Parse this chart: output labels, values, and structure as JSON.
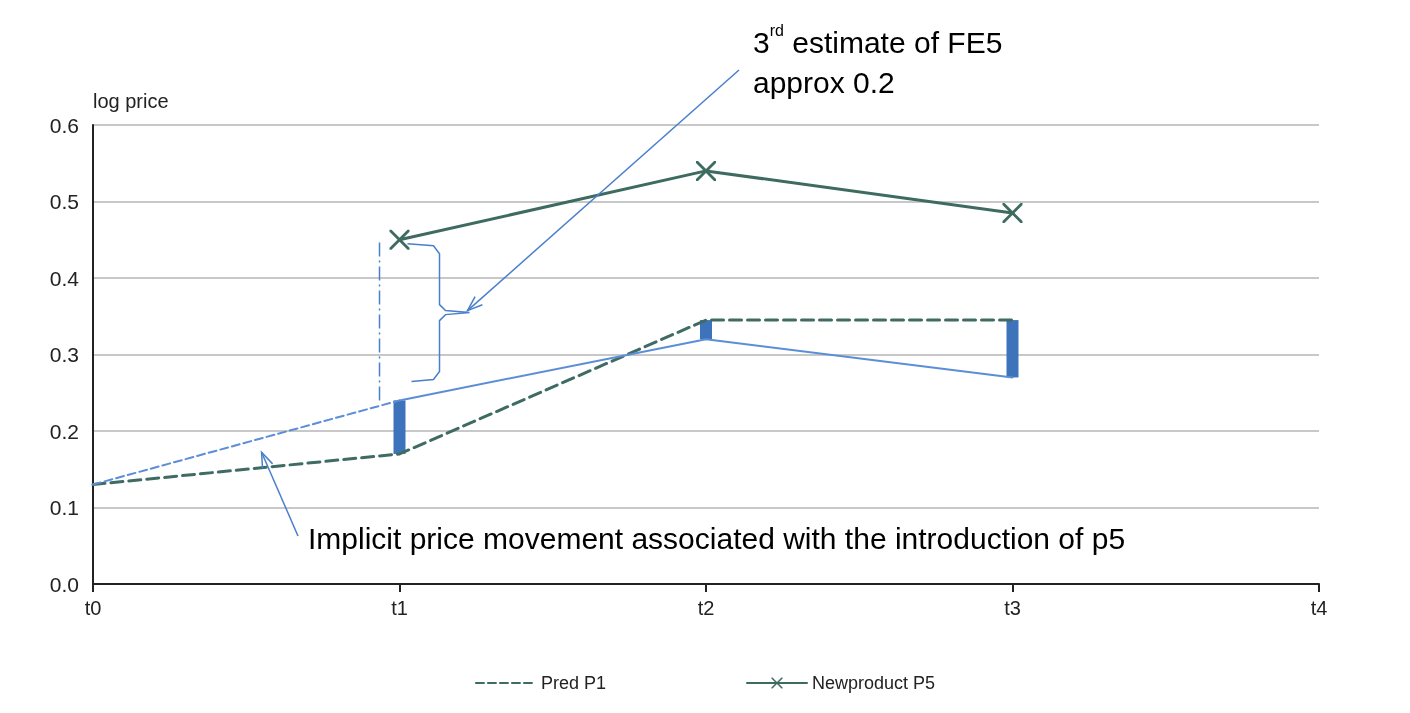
{
  "chart_data": {
    "type": "line",
    "ylabel": "log price",
    "categories": [
      "t0",
      "t1",
      "t2",
      "t3",
      "t4"
    ],
    "ylim": [
      0,
      0.6
    ],
    "yticks": [
      {
        "value": 0,
        "label": "0.0"
      },
      0.1,
      0.2,
      0.3,
      0.4,
      0.5,
      0.6
    ],
    "grid": "y",
    "legend": "bottom",
    "series": [
      {
        "name": "Pred P1",
        "color": "#3f6b63",
        "line_style": "dashed",
        "marker": "none",
        "values": [
          0.13,
          0.17,
          0.345,
          0.345,
          null
        ]
      },
      {
        "name": "Newproduct P5",
        "color": "#3e6b60",
        "line_style": "solid",
        "marker": "cross",
        "values": [
          null,
          0.45,
          0.54,
          0.485,
          null
        ]
      },
      {
        "color": "#5b8ed6",
        "line_style": "dashed",
        "marker": "none",
        "values": [
          0.13,
          0.24,
          null,
          null,
          null
        ]
      },
      {
        "color": "#5b8ed6",
        "line_style": "solid",
        "marker": "none",
        "values": [
          null,
          0.24,
          0.32,
          0.27,
          null
        ]
      },
      {
        "type": "bar",
        "color": "#3c73bb",
        "base": [
          null,
          0.17,
          0.32,
          0.27,
          null
        ],
        "values": [
          null,
          0.07,
          0.025,
          0.075,
          null
        ]
      }
    ],
    "annotations": [
      "3$^{rd}$ estimate of FE5\napprox 0.2",
      "Implicit price movement associated with the introduction of p5"
    ]
  }
}
